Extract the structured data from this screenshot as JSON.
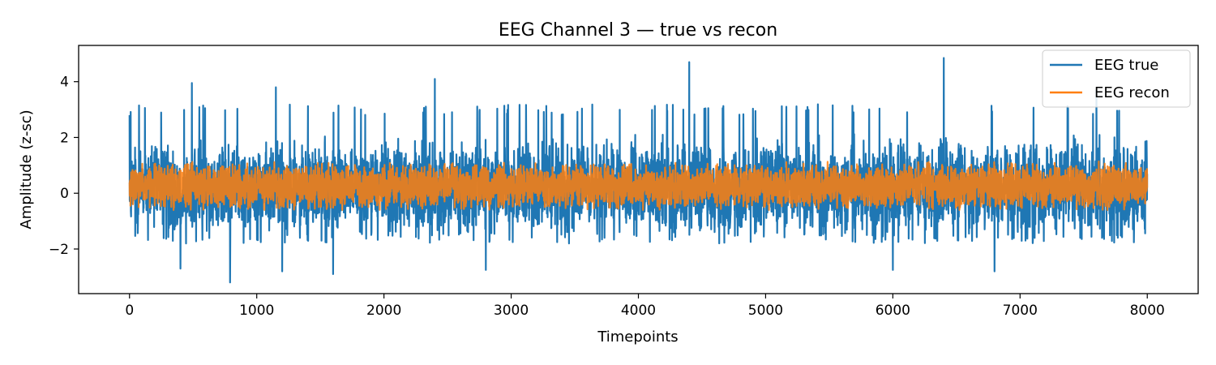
{
  "chart_data": {
    "type": "line",
    "title": "EEG Channel 3 — true vs recon",
    "xlabel": "Timepoints",
    "ylabel": "Amplitude (z-sc)",
    "xlim": [
      -400,
      8400
    ],
    "ylim": [
      -3.6,
      5.3
    ],
    "x_range": [
      0,
      8000
    ],
    "x_ticks": [
      0,
      1000,
      2000,
      3000,
      4000,
      5000,
      6000,
      7000,
      8000
    ],
    "x_tick_labels": [
      "0",
      "1000",
      "2000",
      "3000",
      "4000",
      "5000",
      "6000",
      "7000",
      "8000"
    ],
    "y_ticks": [
      -2,
      0,
      2,
      4
    ],
    "y_tick_labels": [
      "−2",
      "0",
      "2",
      "4"
    ],
    "grid": false,
    "legend_position": "top-right",
    "series": [
      {
        "name": "EEG true",
        "color": "#1f77b4",
        "typical_range": [
          -1.5,
          2.8
        ],
        "peaks": [
          {
            "x": 0,
            "y": 2.8
          },
          {
            "x": 400,
            "y": 3.5
          },
          {
            "x": 490,
            "y": 3.95
          },
          {
            "x": 1150,
            "y": 3.8
          },
          {
            "x": 1600,
            "y": 3.6
          },
          {
            "x": 2400,
            "y": 4.1
          },
          {
            "x": 4400,
            "y": 4.7
          },
          {
            "x": 6400,
            "y": 4.85
          },
          {
            "x": 7600,
            "y": 3.7
          }
        ],
        "troughs": [
          {
            "x": 400,
            "y": -2.7
          },
          {
            "x": 790,
            "y": -3.2
          },
          {
            "x": 1200,
            "y": -2.8
          },
          {
            "x": 1600,
            "y": -2.9
          },
          {
            "x": 2800,
            "y": -2.75
          },
          {
            "x": 6000,
            "y": -2.75
          },
          {
            "x": 6800,
            "y": -2.8
          }
        ]
      },
      {
        "name": "EEG recon",
        "color": "#ff7f0e",
        "typical_range": [
          -0.6,
          1.2
        ]
      }
    ]
  }
}
